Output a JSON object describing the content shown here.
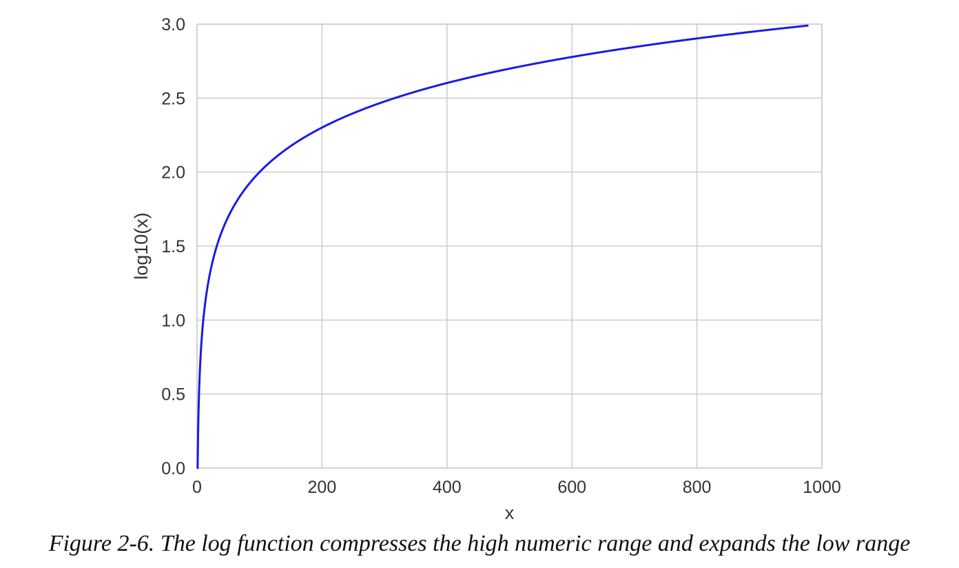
{
  "caption": "Figure 2-6. The log function compresses the high numeric range and expands the low range",
  "chart_data": {
    "type": "line",
    "function": "log10(x)",
    "xlabel": "x",
    "ylabel": "log10(x)",
    "xlim": [
      0,
      1000
    ],
    "ylim": [
      0.0,
      3.0
    ],
    "x_ticks": [
      0,
      200,
      400,
      600,
      800,
      1000
    ],
    "x_tick_labels": [
      "0",
      "200",
      "400",
      "600",
      "800",
      "1000"
    ],
    "y_ticks": [
      0.0,
      0.5,
      1.0,
      1.5,
      2.0,
      2.5,
      3.0
    ],
    "y_tick_labels": [
      "0.0",
      "0.5",
      "1.0",
      "1.5",
      "2.0",
      "2.5",
      "3.0"
    ],
    "grid": true,
    "series": [
      {
        "color": "#1a1ae6",
        "x": [
          1,
          2,
          3,
          4,
          5,
          7,
          10,
          15,
          20,
          30,
          40,
          50,
          70,
          100,
          150,
          200,
          250,
          300,
          400,
          500,
          600,
          700,
          800,
          900,
          977
        ],
        "y": [
          0.0,
          0.301,
          0.477,
          0.602,
          0.699,
          0.845,
          1.0,
          1.176,
          1.301,
          1.477,
          1.602,
          1.699,
          1.845,
          2.0,
          2.176,
          2.301,
          2.398,
          2.477,
          2.602,
          2.699,
          2.778,
          2.845,
          2.903,
          2.954,
          2.99
        ]
      }
    ],
    "colors": {
      "line": "#1a1ae6",
      "grid": "#cccccc",
      "text": "#333333"
    }
  }
}
